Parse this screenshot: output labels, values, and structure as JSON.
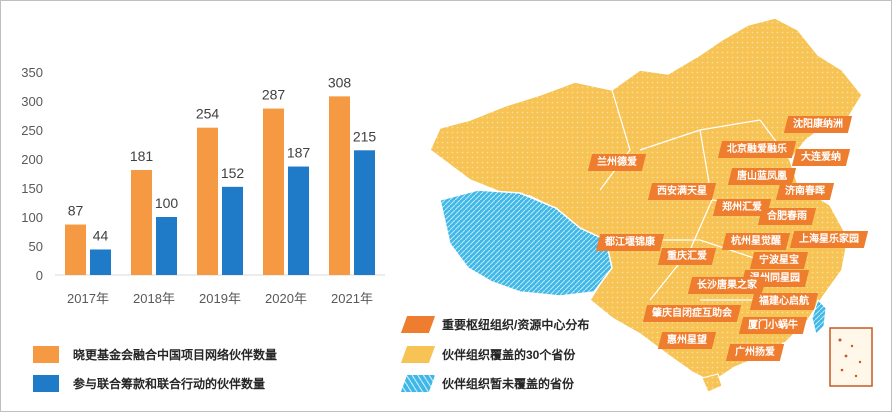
{
  "chart_data": {
    "type": "bar",
    "categories": [
      "2017年",
      "2018年",
      "2019年",
      "2020年",
      "2021年"
    ],
    "series": [
      {
        "name": "晓更基金会融合中国项目网络伙伴数量",
        "color": "#f59a42",
        "values": [
          87,
          181,
          254,
          287,
          308
        ]
      },
      {
        "name": "参与联合筹款和联合行动的伙伴数量",
        "color": "#1f7ac8",
        "values": [
          44,
          100,
          152,
          187,
          215
        ]
      }
    ],
    "yticks": [
      0,
      50,
      100,
      150,
      200,
      250,
      300,
      350
    ],
    "ylim": [
      0,
      350
    ],
    "grid": false,
    "legend": "bottom-left"
  },
  "map": {
    "legend": [
      {
        "label": "重要枢纽组织/资源中心分布",
        "type": "hub"
      },
      {
        "label": "伙伴组织覆盖的30个省份",
        "type": "covered"
      },
      {
        "label": "伙伴组织暂未覆盖的省份",
        "type": "uncovered"
      }
    ],
    "cities": [
      "沈阳康纳洲",
      "北京融爱融乐",
      "大连爱纳",
      "兰州德爱",
      "唐山蓝凤凰",
      "济南春晖",
      "西安满天星",
      "郑州汇爱",
      "合肥春雨",
      "都江堰锦康",
      "杭州星觉醒",
      "上海星乐家园",
      "重庆汇爱",
      "宁波星宝",
      "温州同星园",
      "长沙唐果之家",
      "福建心启航",
      "肇庆自闭症互助会",
      "厦门小蜗牛",
      "惠州星望",
      "广州扬爱"
    ],
    "colors": {
      "covered": "#f6c354",
      "uncovered": "#3fb8e8",
      "hub": "#ef7d2f"
    }
  }
}
